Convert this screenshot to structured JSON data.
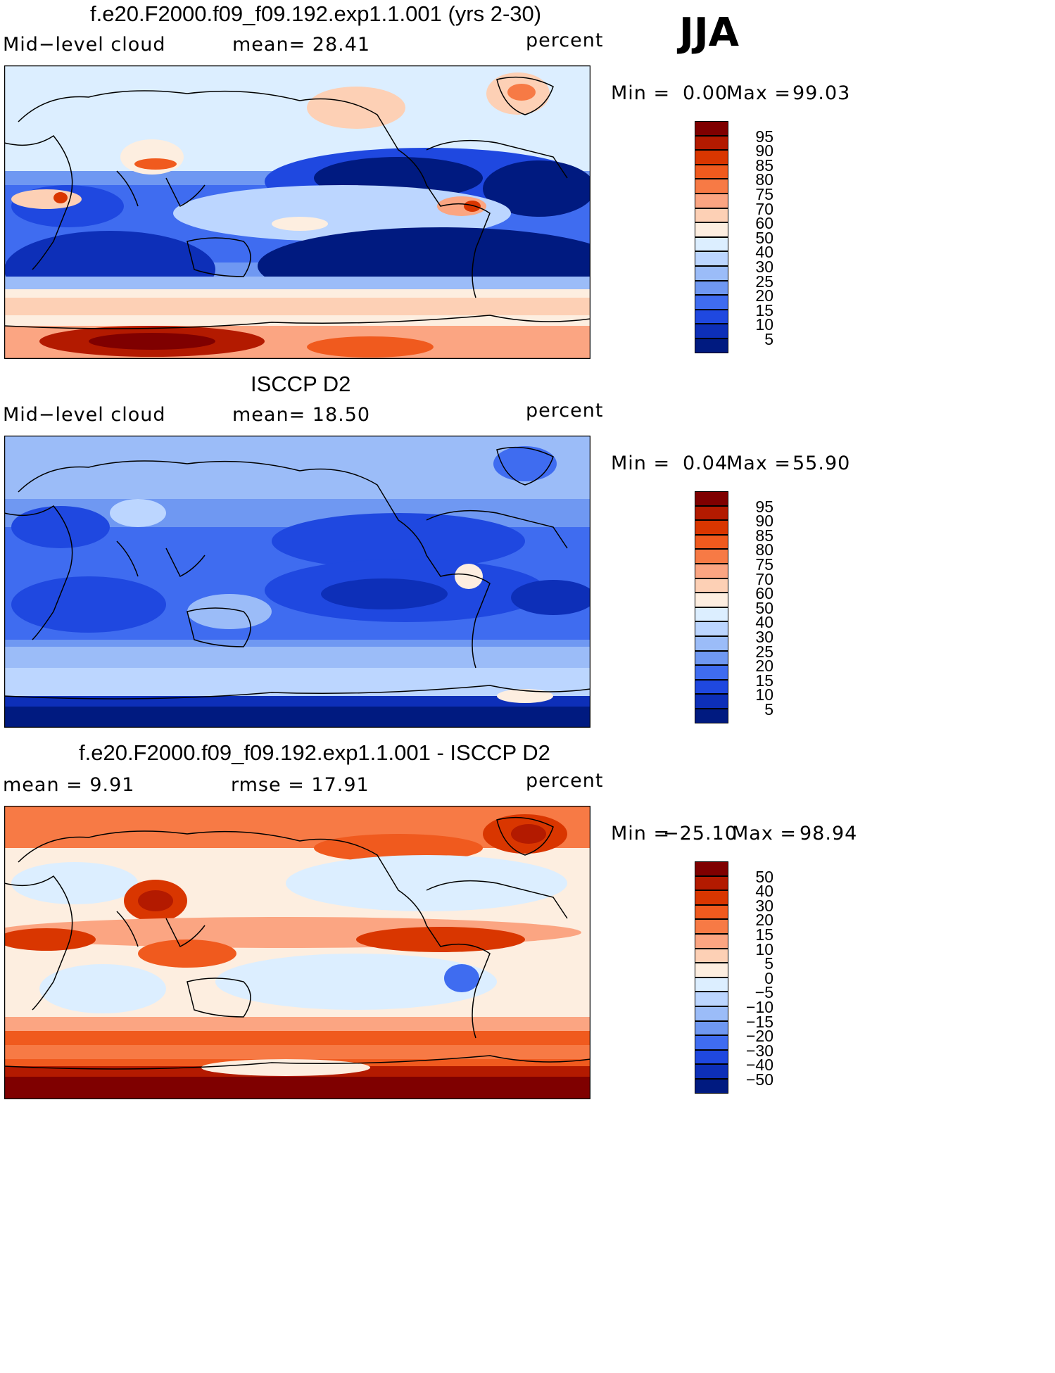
{
  "season": "JJA",
  "panels": [
    {
      "title": "f.e20.F2000.f09_f09.192.exp1.1.001 (yrs 2-30)",
      "left_label": "Mid−level cloud",
      "middle_label": "mean=   28.41",
      "units": "percent",
      "min_text": "Min  =",
      "min_value": "0.00",
      "max_text": "Max  =",
      "max_value": "99.03",
      "colorbar_labels": [
        "95",
        "90",
        "85",
        "80",
        "75",
        "70",
        "60",
        "50",
        "40",
        "30",
        "25",
        "20",
        "15",
        "10",
        "5"
      ]
    },
    {
      "title": "ISCCP D2",
      "left_label": "Mid−level cloud",
      "middle_label": "mean=   18.50",
      "units": "percent",
      "min_text": "Min  =",
      "min_value": "0.04",
      "max_text": "Max  =",
      "max_value": "55.90",
      "colorbar_labels": [
        "95",
        "90",
        "85",
        "80",
        "75",
        "70",
        "60",
        "50",
        "40",
        "30",
        "25",
        "20",
        "15",
        "10",
        "5"
      ]
    },
    {
      "title": "f.e20.F2000.f09_f09.192.exp1.1.001 - ISCCP D2",
      "left_label": "mean =     9.91",
      "middle_label": "rmse =    17.91",
      "units": "percent",
      "min_text": "Min  =",
      "min_value": "−25.10",
      "max_text": "Max  =",
      "max_value": "98.94",
      "colorbar_labels": [
        "50",
        "40",
        "30",
        "20",
        "15",
        "10",
        "5",
        "0",
        "−5",
        "−10",
        "−15",
        "−20",
        "−30",
        "−40",
        "−50"
      ]
    }
  ],
  "colorbar_colors": [
    "#7f0000",
    "#b31a00",
    "#d93600",
    "#f05a1e",
    "#f77a45",
    "#fba582",
    "#fdd0b5",
    "#fdeee0",
    "#dceeff",
    "#bcd6ff",
    "#9bbcf8",
    "#6f98f2",
    "#3f6cf0",
    "#1f48e0",
    "#0d2fb8",
    "#001a80"
  ],
  "field_colors": {
    "deep_blue": "#001a80",
    "blue": "#1f48e0",
    "mid_blue": "#6f98f2",
    "light_blue": "#bcd6ff",
    "pale_blue": "#dceeff",
    "cream": "#fdeee0",
    "salmon": "#fba582",
    "orange": "#f05a1e",
    "red": "#b31a00",
    "dark_red": "#7f0000"
  }
}
